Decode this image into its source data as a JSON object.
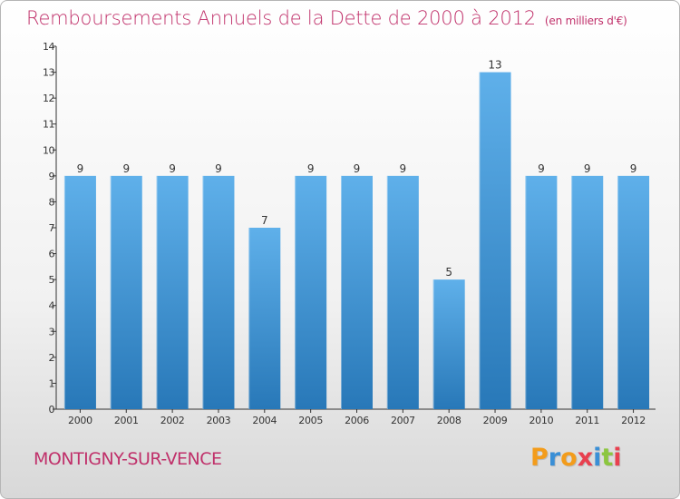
{
  "chart_data": {
    "type": "bar",
    "title": "Remboursements Annuels de la Dette de 2000 à 2012",
    "subtitle": "(en milliers d'€)",
    "categories": [
      "2000",
      "2001",
      "2002",
      "2003",
      "2004",
      "2005",
      "2006",
      "2007",
      "2008",
      "2009",
      "2010",
      "2011",
      "2012"
    ],
    "values": [
      9,
      9,
      9,
      9,
      7,
      9,
      9,
      9,
      5,
      13,
      9,
      9,
      9
    ],
    "data_labels": [
      "9",
      "9",
      "9",
      "9",
      "7",
      "9",
      "9",
      "9",
      "5",
      "13",
      "9",
      "9",
      "9"
    ],
    "ylim": [
      0,
      14
    ],
    "yticks": [
      "0",
      "1",
      "2",
      "3",
      "4",
      "5",
      "6",
      "7",
      "8",
      "9",
      "10",
      "11",
      "12",
      "13",
      "14"
    ],
    "xlabel": "",
    "ylabel": "",
    "grid": false,
    "legend": "none"
  },
  "footer": {
    "commune": "MONTIGNY-SUR-VENCE",
    "brand": "Proxiti"
  },
  "colors": {
    "title": "#c0306a",
    "bar_top": "#5fb0ea",
    "bar_bottom": "#2878b8",
    "axis": "#333333",
    "brand_letters": [
      "#f39c1b",
      "#3a8fd6",
      "#f39c1b",
      "#e8404f",
      "#3a8fd6",
      "#8cc63f",
      "#e8404f"
    ]
  }
}
